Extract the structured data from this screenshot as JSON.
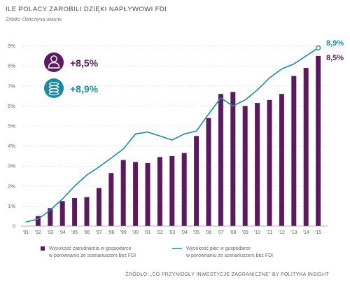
{
  "header": {
    "title": "ILE POLACY ZAROBILI DZIĘKI NAPŁYWOWI FDI",
    "subtitle": "Źródło: Obliczenia własne"
  },
  "footer": "ŹRÓDŁO: „CO PRZYNIOSŁY INWESTYCJE ZAGRANICZNE” BY POLITYKA INSIGHT",
  "callouts": [
    {
      "icon": "person-icon",
      "value": "+8,5%",
      "color": "#5b1a5e"
    },
    {
      "icon": "coins-icon",
      "value": "+8,9%",
      "color": "#1d8aa3"
    }
  ],
  "chart_data": {
    "type": "bar+line",
    "categories": [
      "'91",
      "'92",
      "'93",
      "'94",
      "'95",
      "'96",
      "'97",
      "'98",
      "'99",
      "'00",
      "'01",
      "'02",
      "'03",
      "'04",
      "'05",
      "'06",
      "'07",
      "'08",
      "'09",
      "'10",
      "'11",
      "'12",
      "'13",
      "'14",
      "'15"
    ],
    "y_ticks": [
      "0",
      "1%",
      "2%",
      "3%",
      "4%",
      "5%",
      "6%",
      "7%",
      "8%",
      "9%"
    ],
    "ylim": [
      0,
      9
    ],
    "grid": true,
    "series": [
      {
        "name": "Wysokość zatrudnienia w gospodarce w porównaniu ze scenariuszem bez FDI",
        "kind": "bar",
        "color": "#5b1a5e",
        "values": [
          0.0,
          0.5,
          0.9,
          1.25,
          1.4,
          1.45,
          1.9,
          2.65,
          3.3,
          3.2,
          3.15,
          3.45,
          3.5,
          3.65,
          4.5,
          5.4,
          6.6,
          6.7,
          6.0,
          6.15,
          6.3,
          6.6,
          7.5,
          7.9,
          8.5
        ]
      },
      {
        "name": "Wysokość płac w gospodarce w porównaniu ze scenariuszem bez FDI",
        "kind": "line",
        "color": "#1d8aa3",
        "values": [
          0.2,
          0.35,
          0.8,
          1.35,
          2.0,
          2.55,
          2.95,
          3.4,
          3.85,
          4.6,
          4.7,
          4.5,
          4.3,
          4.6,
          4.75,
          5.6,
          6.4,
          6.0,
          6.3,
          6.8,
          7.4,
          7.85,
          8.1,
          8.5,
          8.9
        ]
      }
    ],
    "end_labels": {
      "line": "8,9%",
      "bar": "8,5%"
    },
    "legend": {
      "bar": [
        "Wysokość zatrudnienia w gospodarce",
        "w porównaniu ze scenariuszem bez FDI"
      ],
      "line": [
        "Wysokość płac w gospodarce",
        "w porównaniu ze scenariuszem bez FDI"
      ]
    }
  }
}
